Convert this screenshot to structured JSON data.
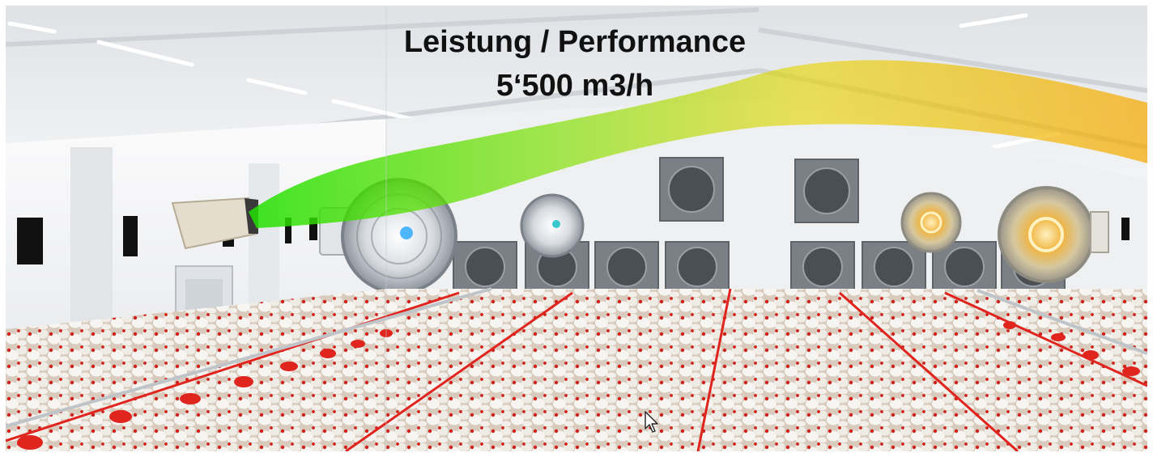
{
  "headline": {
    "line1": "Leistung / Performance",
    "line2": "5‘500 m3/h"
  },
  "scene": {
    "description_icons": [
      "ceiling-light-icon",
      "wall-fan-icon",
      "circulation-fan-icon",
      "chicken-icon",
      "cursor-icon"
    ],
    "airflow_gradient": [
      "#22e000",
      "#9ce000",
      "#f2c400",
      "#f5a800"
    ],
    "colors": {
      "wall": "#f1f3f5",
      "ceiling": "#e4e7ea",
      "floor": "#e8ded4",
      "fan_panel": "#7b8086",
      "feeder_red": "#e0241e",
      "chicken": "#f6f4f0",
      "comb": "#d0201a"
    }
  }
}
